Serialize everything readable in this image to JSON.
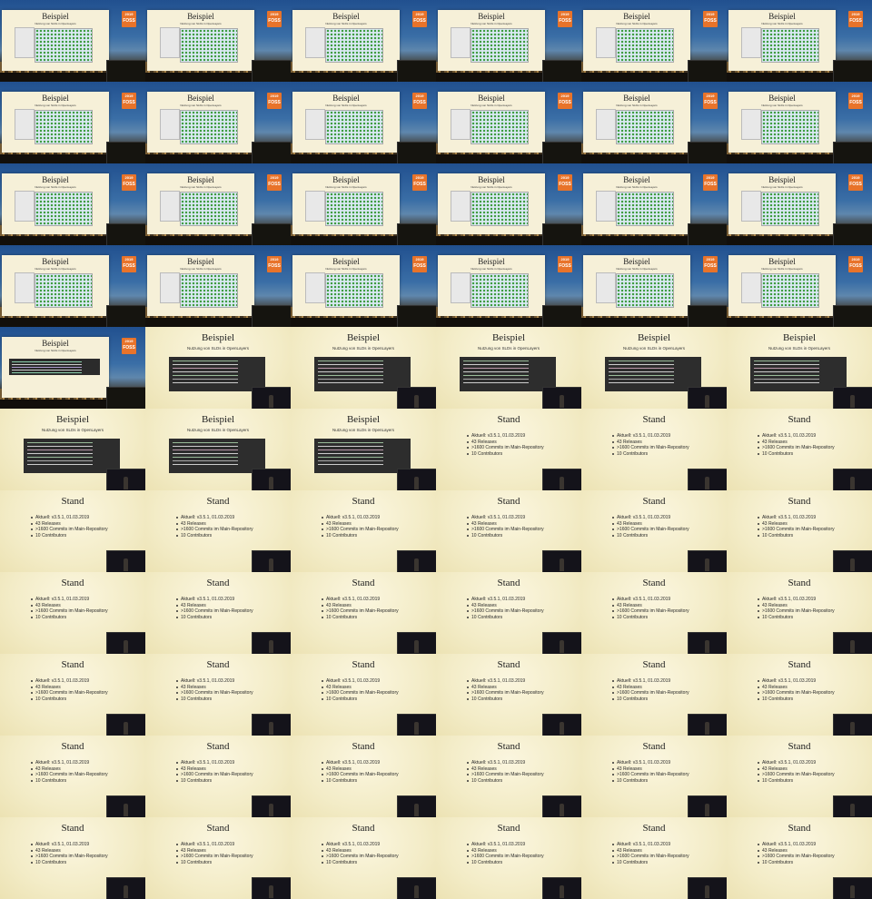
{
  "slides": {
    "beispiel": {
      "title": "Beispiel",
      "subtitle": "Nutzung von SLDs in OpenLayers"
    },
    "stand": {
      "title": "Stand",
      "bullets": [
        "Aktuell: v3.5.1, 01.03.2019",
        "43 Releases",
        ">1600 Commits im Main-Repository",
        "10 Contributors"
      ]
    }
  },
  "logo": {
    "year": "2019",
    "name": "FOSS"
  },
  "sequence": [
    "room-map",
    "room-map",
    "room-map",
    "room-map",
    "room-map",
    "room-map",
    "room-map",
    "room-map",
    "room-map",
    "room-map",
    "room-map",
    "room-map",
    "room-map",
    "room-map",
    "room-map",
    "room-map",
    "room-map",
    "room-map",
    "room-map",
    "room-map",
    "room-map",
    "room-map",
    "room-map",
    "room-map",
    "room-code",
    "beispiel-code",
    "beispiel-code",
    "beispiel-code",
    "beispiel-code",
    "beispiel-code",
    "beispiel-code",
    "beispiel-code",
    "beispiel-code",
    "stand",
    "stand",
    "stand",
    "stand",
    "stand",
    "stand",
    "stand",
    "stand",
    "stand",
    "stand",
    "stand",
    "stand",
    "stand",
    "stand",
    "stand",
    "stand",
    "stand",
    "stand",
    "stand",
    "stand",
    "stand",
    "stand",
    "stand",
    "stand",
    "stand",
    "stand",
    "stand",
    "stand",
    "stand",
    "stand",
    "stand",
    "stand",
    "stand"
  ],
  "colors": {
    "logo": "#e8732a",
    "slide_bg": "#f3ecc7",
    "sky": "#21508f"
  }
}
